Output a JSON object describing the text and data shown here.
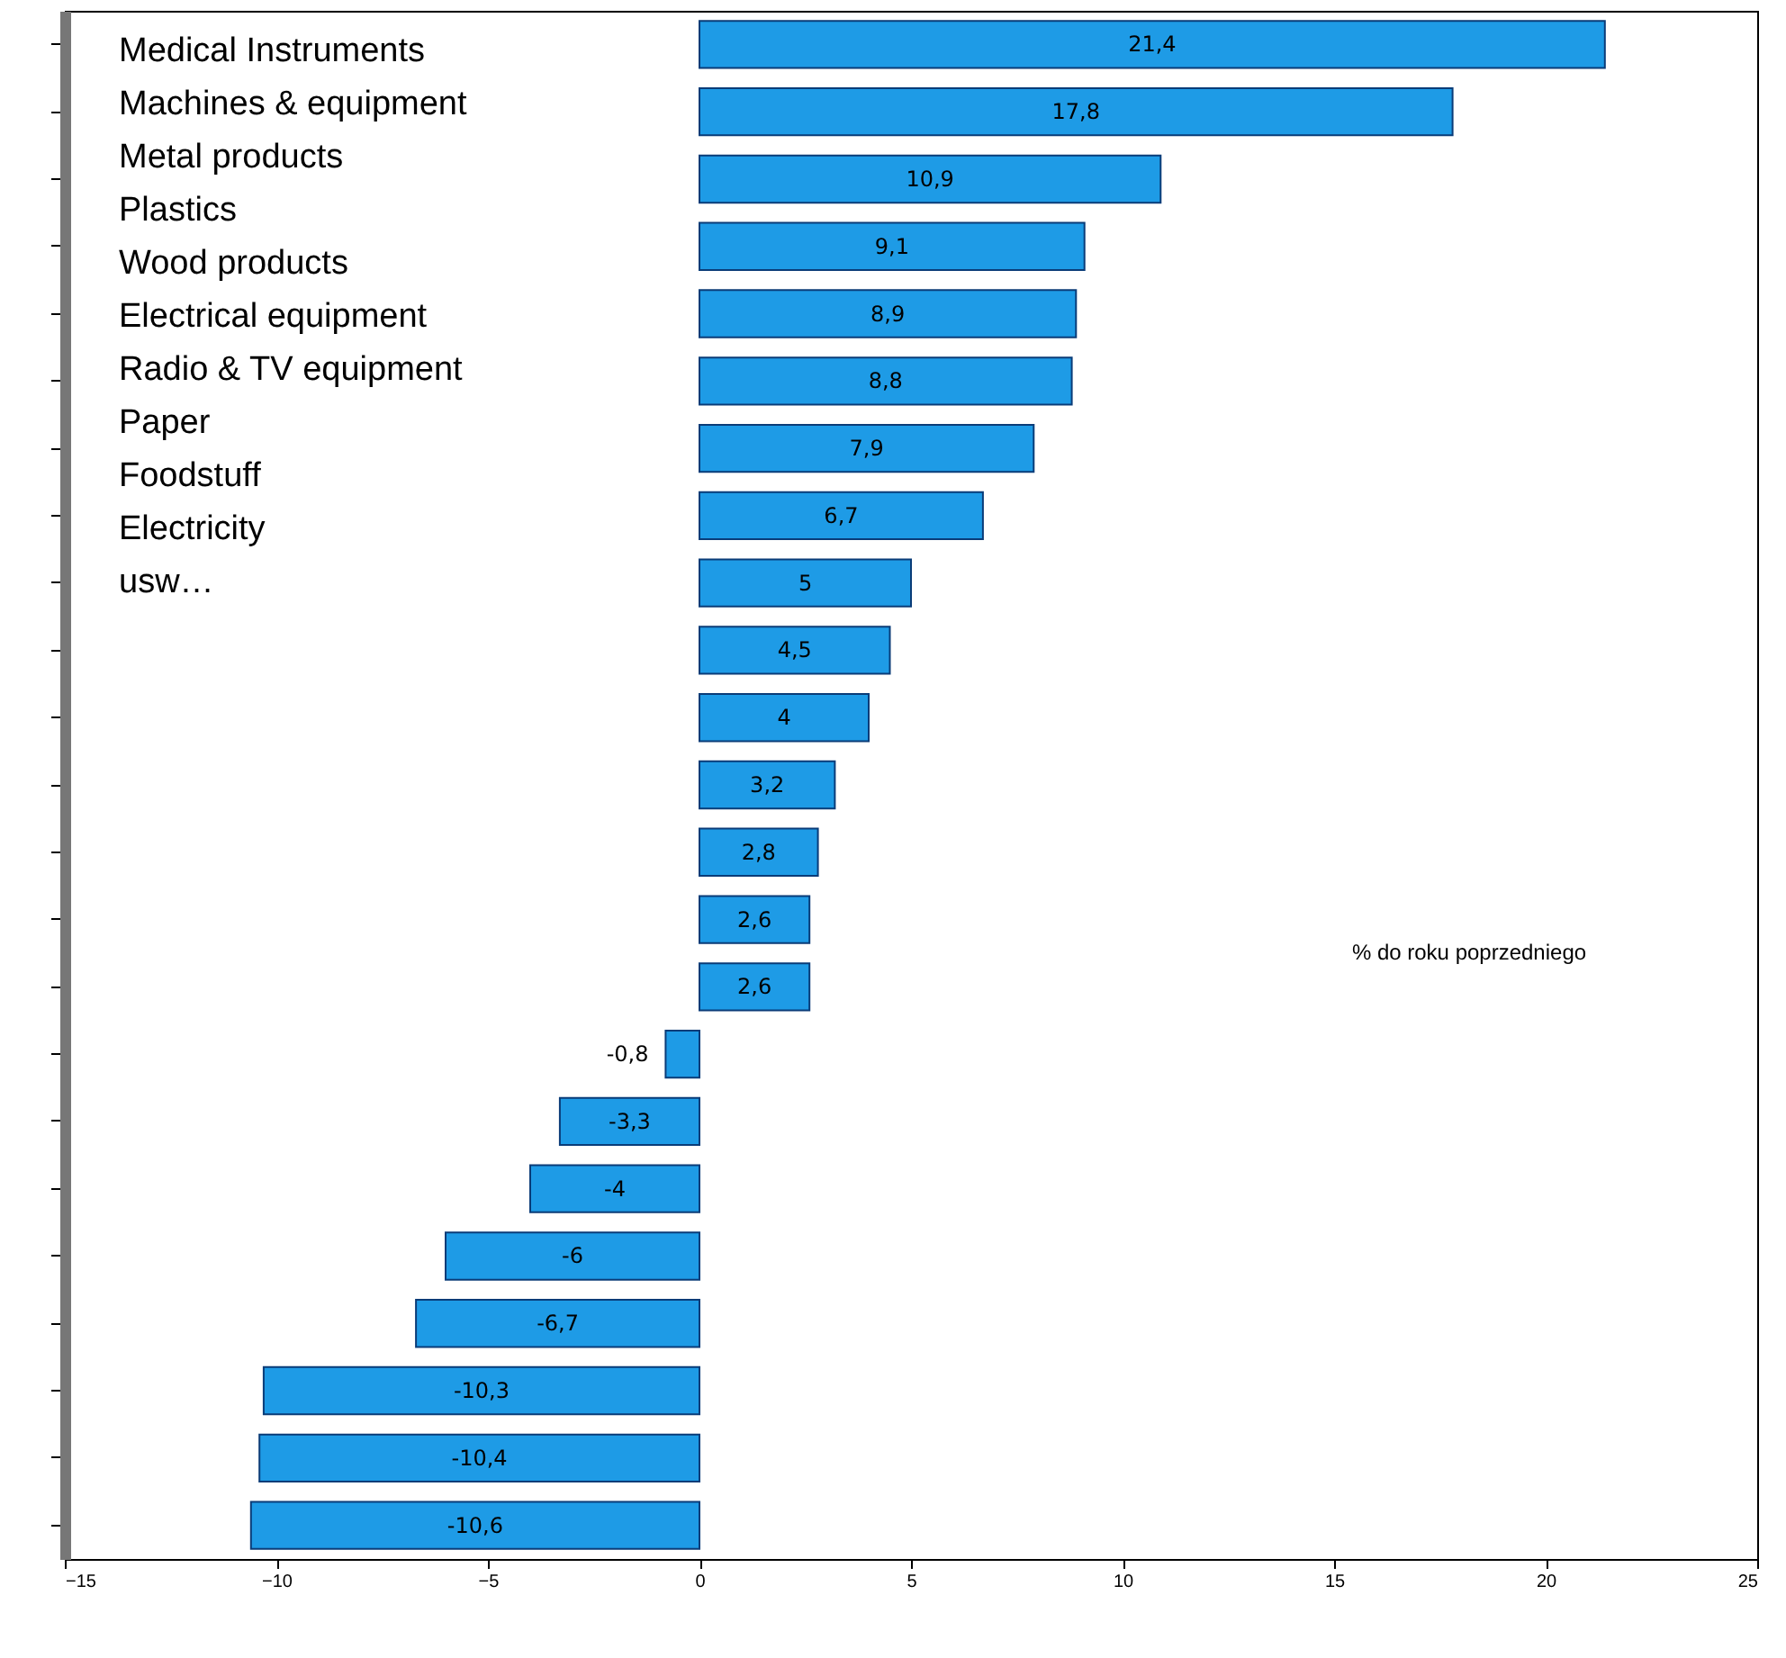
{
  "chart_data": {
    "type": "bar",
    "orientation": "horizontal",
    "categories": [
      null,
      null,
      null,
      null,
      null,
      null,
      null,
      null,
      null,
      null,
      null,
      null,
      null,
      null,
      null,
      null,
      null,
      null,
      null,
      null,
      null,
      null,
      null
    ],
    "values": [
      21.4,
      17.8,
      10.9,
      9.1,
      8.9,
      8.8,
      7.9,
      6.7,
      5,
      4.5,
      4,
      3.2,
      2.8,
      2.6,
      2.6,
      -0.8,
      -3.3,
      -4,
      -6,
      -6.7,
      -10.3,
      -10.4,
      -10.6
    ],
    "value_labels": [
      "21,4",
      "17,8",
      "10,9",
      "9,1",
      "8,9",
      "8,8",
      "7,9",
      "6,7",
      "5",
      "4,5",
      "4",
      "3,2",
      "2,8",
      "2,6",
      "2,6",
      "-0,8",
      "-3,3",
      "-4",
      "-6",
      "-6,7",
      "-10,3",
      "-10,4",
      "-10,6"
    ],
    "color": "#1e9be6",
    "xlim": [
      -15,
      25
    ],
    "xticks": [
      -15,
      -10,
      -5,
      0,
      5,
      10,
      15,
      20,
      25
    ],
    "tick_labels": "x",
    "grid": false,
    "annotations": [
      "Medical Instruments",
      "Machines & equipment",
      "Metal products",
      "Plastics",
      "Wood products",
      "Electrical equipment",
      "Radio & TV equipment",
      "Paper",
      "Foodstuff",
      "Electricity",
      "usw…",
      "% do roku poprzedniego"
    ]
  }
}
